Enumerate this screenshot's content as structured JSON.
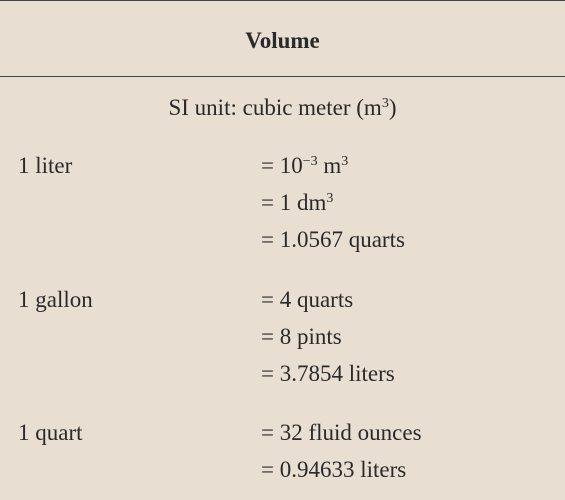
{
  "table": {
    "title": "Volume",
    "si_prefix": "SI unit: cubic meter (m",
    "si_exp": "3",
    "si_suffix": ")",
    "rows": [
      {
        "unit": "1 liter",
        "equivalents": [
          {
            "pre": "= 10",
            "sup": "−3",
            "post": " m",
            "sup2": "3"
          },
          {
            "pre": "= 1 dm",
            "sup": "3",
            "post": "",
            "sup2": ""
          },
          {
            "pre": "= 1.0567 quarts",
            "sup": "",
            "post": "",
            "sup2": ""
          }
        ]
      },
      {
        "unit": "1 gallon",
        "equivalents": [
          {
            "pre": "= 4 quarts",
            "sup": "",
            "post": "",
            "sup2": ""
          },
          {
            "pre": "= 8 pints",
            "sup": "",
            "post": "",
            "sup2": ""
          },
          {
            "pre": "= 3.7854 liters",
            "sup": "",
            "post": "",
            "sup2": ""
          }
        ]
      },
      {
        "unit": "1 quart",
        "equivalents": [
          {
            "pre": "= 32 fluid ounces",
            "sup": "",
            "post": "",
            "sup2": ""
          },
          {
            "pre": "= 0.94633 liters",
            "sup": "",
            "post": "",
            "sup2": ""
          }
        ]
      }
    ]
  }
}
